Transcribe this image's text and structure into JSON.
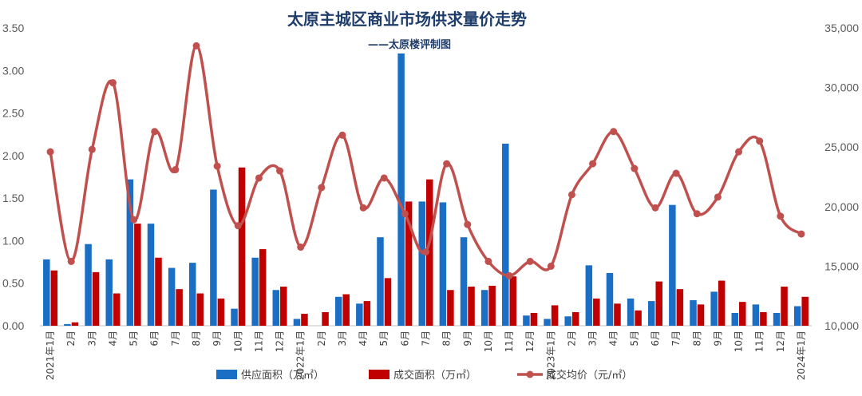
{
  "chart_data": {
    "type": "bar",
    "title": "太原主城区商业市场供求量价走势",
    "subtitle": "——太原楼评制图",
    "categories": [
      "2021年1月",
      "2月",
      "3月",
      "4月",
      "5月",
      "6月",
      "7月",
      "8月",
      "9月",
      "10月",
      "11月",
      "12月",
      "2022年1月",
      "2月",
      "3月",
      "4月",
      "5月",
      "6月",
      "7月",
      "8月",
      "9月",
      "10月",
      "11月",
      "12月",
      "2023年1月",
      "2月",
      "3月",
      "4月",
      "5月",
      "6月",
      "7月",
      "8月",
      "9月",
      "10月",
      "11月",
      "12月",
      "2024年1月"
    ],
    "y_left": {
      "min": 0,
      "max": 3.5,
      "ticks": [
        "0.00",
        "0.50",
        "1.00",
        "1.50",
        "2.00",
        "2.50",
        "3.00",
        "3.50"
      ]
    },
    "y_right": {
      "min": 10000,
      "max": 35000,
      "ticks": [
        "10,000",
        "15,000",
        "20,000",
        "25,000",
        "30,000",
        "35,000"
      ]
    },
    "series": [
      {
        "name": "供应面积（万㎡）",
        "type": "bar",
        "axis": "left",
        "color": "#1a6fc4",
        "values": [
          0.78,
          0.02,
          0.96,
          0.78,
          1.72,
          1.2,
          0.68,
          0.74,
          1.6,
          0.2,
          0.8,
          0.42,
          0.08,
          0.0,
          0.34,
          0.26,
          1.04,
          3.2,
          1.46,
          1.45,
          1.04,
          0.42,
          2.14,
          0.12,
          0.08,
          0.11,
          0.71,
          0.62,
          0.32,
          0.29,
          1.42,
          0.3,
          0.4,
          0.15,
          0.25,
          0.15,
          0.23
        ]
      },
      {
        "name": "成交面积（万㎡）",
        "type": "bar",
        "axis": "left",
        "color": "#c00000",
        "values": [
          0.65,
          0.04,
          0.63,
          0.38,
          1.2,
          0.8,
          0.43,
          0.38,
          0.32,
          1.86,
          0.9,
          0.46,
          0.14,
          0.16,
          0.37,
          0.29,
          0.56,
          1.46,
          1.72,
          0.42,
          0.46,
          0.47,
          0.58,
          0.15,
          0.24,
          0.16,
          0.32,
          0.26,
          0.18,
          0.52,
          0.43,
          0.25,
          0.53,
          0.28,
          0.16,
          0.46,
          0.34
        ]
      },
      {
        "name": "成交均价（元/㎡）",
        "type": "line",
        "axis": "right",
        "color": "#c0504d",
        "values": [
          24600,
          15400,
          24800,
          30400,
          18900,
          26300,
          23100,
          33500,
          23400,
          18400,
          22400,
          23000,
          16600,
          21600,
          26000,
          19900,
          22400,
          19400,
          16200,
          23600,
          18500,
          15400,
          14200,
          15400,
          15000,
          21000,
          23600,
          26300,
          23200,
          19900,
          22800,
          19400,
          20800,
          24600,
          25500,
          19200,
          17700
        ]
      }
    ],
    "legend_position": "bottom",
    "grid": false
  }
}
